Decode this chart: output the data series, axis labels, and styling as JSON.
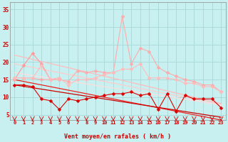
{
  "background_color": "#c8f0f0",
  "grid_color": "#a8d8d8",
  "x_labels": [
    "0",
    "1",
    "2",
    "3",
    "4",
    "5",
    "6",
    "7",
    "8",
    "9",
    "10",
    "11",
    "12",
    "13",
    "14",
    "15",
    "16",
    "17",
    "18",
    "19",
    "20",
    "21",
    "22",
    "23"
  ],
  "xlabel": "Vent moyen/en rafales ( km/h )",
  "ylabel_ticks": [
    5,
    10,
    15,
    20,
    25,
    30,
    35
  ],
  "ylim": [
    3.5,
    37
  ],
  "xlim": [
    -0.5,
    23.5
  ],
  "series": [
    {
      "name": "pink_regression_upper",
      "color": "#ffbbbb",
      "linewidth": 0.9,
      "markersize": 0,
      "marker": null,
      "y": [
        22.0,
        21.4,
        20.8,
        20.2,
        19.6,
        19.0,
        18.4,
        17.8,
        17.2,
        16.6,
        16.0,
        15.4,
        14.8,
        14.2,
        13.6,
        13.0,
        12.4,
        11.8,
        11.2,
        10.6,
        10.0,
        9.4,
        8.8,
        8.2
      ]
    },
    {
      "name": "pink_regression_lower",
      "color": "#ffcccc",
      "linewidth": 0.9,
      "markersize": 0,
      "marker": null,
      "y": [
        19.5,
        19.0,
        18.5,
        18.0,
        17.5,
        17.0,
        16.5,
        16.0,
        15.5,
        15.0,
        14.5,
        14.0,
        13.5,
        13.0,
        12.5,
        12.0,
        11.5,
        11.0,
        10.5,
        10.0,
        9.5,
        9.0,
        8.5,
        8.0
      ]
    },
    {
      "name": "pink_regression_mid",
      "color": "#ffdddd",
      "linewidth": 0.9,
      "markersize": 0,
      "marker": null,
      "y": [
        17.0,
        16.6,
        16.2,
        15.8,
        15.4,
        15.0,
        14.6,
        14.2,
        13.8,
        13.4,
        13.0,
        12.6,
        12.2,
        11.8,
        11.4,
        11.0,
        10.6,
        10.2,
        9.8,
        9.4,
        9.0,
        8.6,
        8.2,
        7.8
      ]
    },
    {
      "name": "red_regression_upper",
      "color": "#ee2222",
      "linewidth": 0.9,
      "markersize": 0,
      "marker": null,
      "y": [
        15.0,
        14.5,
        14.0,
        13.5,
        13.0,
        12.5,
        12.0,
        11.5,
        11.0,
        10.5,
        10.0,
        9.5,
        9.0,
        8.5,
        8.0,
        7.5,
        7.0,
        6.5,
        6.0,
        5.5,
        5.0,
        4.5,
        4.0,
        3.5
      ]
    },
    {
      "name": "red_regression_lower",
      "color": "#cc0000",
      "linewidth": 0.9,
      "markersize": 0,
      "marker": null,
      "y": [
        13.5,
        13.1,
        12.7,
        12.3,
        11.9,
        11.5,
        11.1,
        10.7,
        10.3,
        9.9,
        9.5,
        9.1,
        8.7,
        8.3,
        7.9,
        7.5,
        7.1,
        6.7,
        6.3,
        5.9,
        5.5,
        5.1,
        4.7,
        4.3
      ]
    },
    {
      "name": "line_pink_data1",
      "color": "#ff9999",
      "linewidth": 0.8,
      "markersize": 2.5,
      "marker": "D",
      "y": [
        15.0,
        19.0,
        22.5,
        19.5,
        15.0,
        15.5,
        null,
        null,
        null,
        null,
        null,
        null,
        null,
        null,
        null,
        null,
        null,
        null,
        null,
        null,
        null,
        null,
        null,
        null
      ]
    },
    {
      "name": "line_pink_data2",
      "color": "#ffaaaa",
      "linewidth": 0.8,
      "markersize": 2.5,
      "marker": "D",
      "y": [
        15.5,
        15.5,
        15.5,
        15.0,
        15.0,
        15.0,
        14.5,
        17.5,
        17.0,
        17.5,
        17.0,
        17.0,
        33.0,
        19.5,
        24.0,
        23.0,
        18.5,
        17.0,
        16.0,
        15.0,
        14.5,
        13.5,
        13.5,
        11.5
      ]
    },
    {
      "name": "line_pink_data3",
      "color": "#ffbbbb",
      "linewidth": 0.8,
      "markersize": 2.5,
      "marker": "D",
      "y": [
        15.5,
        15.5,
        15.5,
        19.0,
        15.0,
        15.5,
        13.5,
        15.0,
        15.0,
        15.5,
        16.5,
        17.0,
        18.0,
        18.0,
        19.5,
        15.5,
        15.5,
        15.5,
        15.0,
        14.0,
        14.0,
        13.0,
        13.0,
        11.5
      ]
    },
    {
      "name": "line_red_data",
      "color": "#dd0000",
      "linewidth": 0.8,
      "markersize": 2.5,
      "marker": "D",
      "y": [
        13.5,
        13.5,
        13.0,
        9.5,
        9.0,
        6.5,
        9.5,
        9.0,
        9.5,
        10.0,
        10.5,
        11.0,
        11.0,
        11.5,
        10.5,
        11.0,
        6.5,
        11.0,
        6.0,
        10.5,
        9.5,
        9.5,
        9.5,
        7.0
      ]
    }
  ],
  "arrow_color": "#cc0000",
  "label_color": "#cc0000",
  "axis_color": "#999999"
}
